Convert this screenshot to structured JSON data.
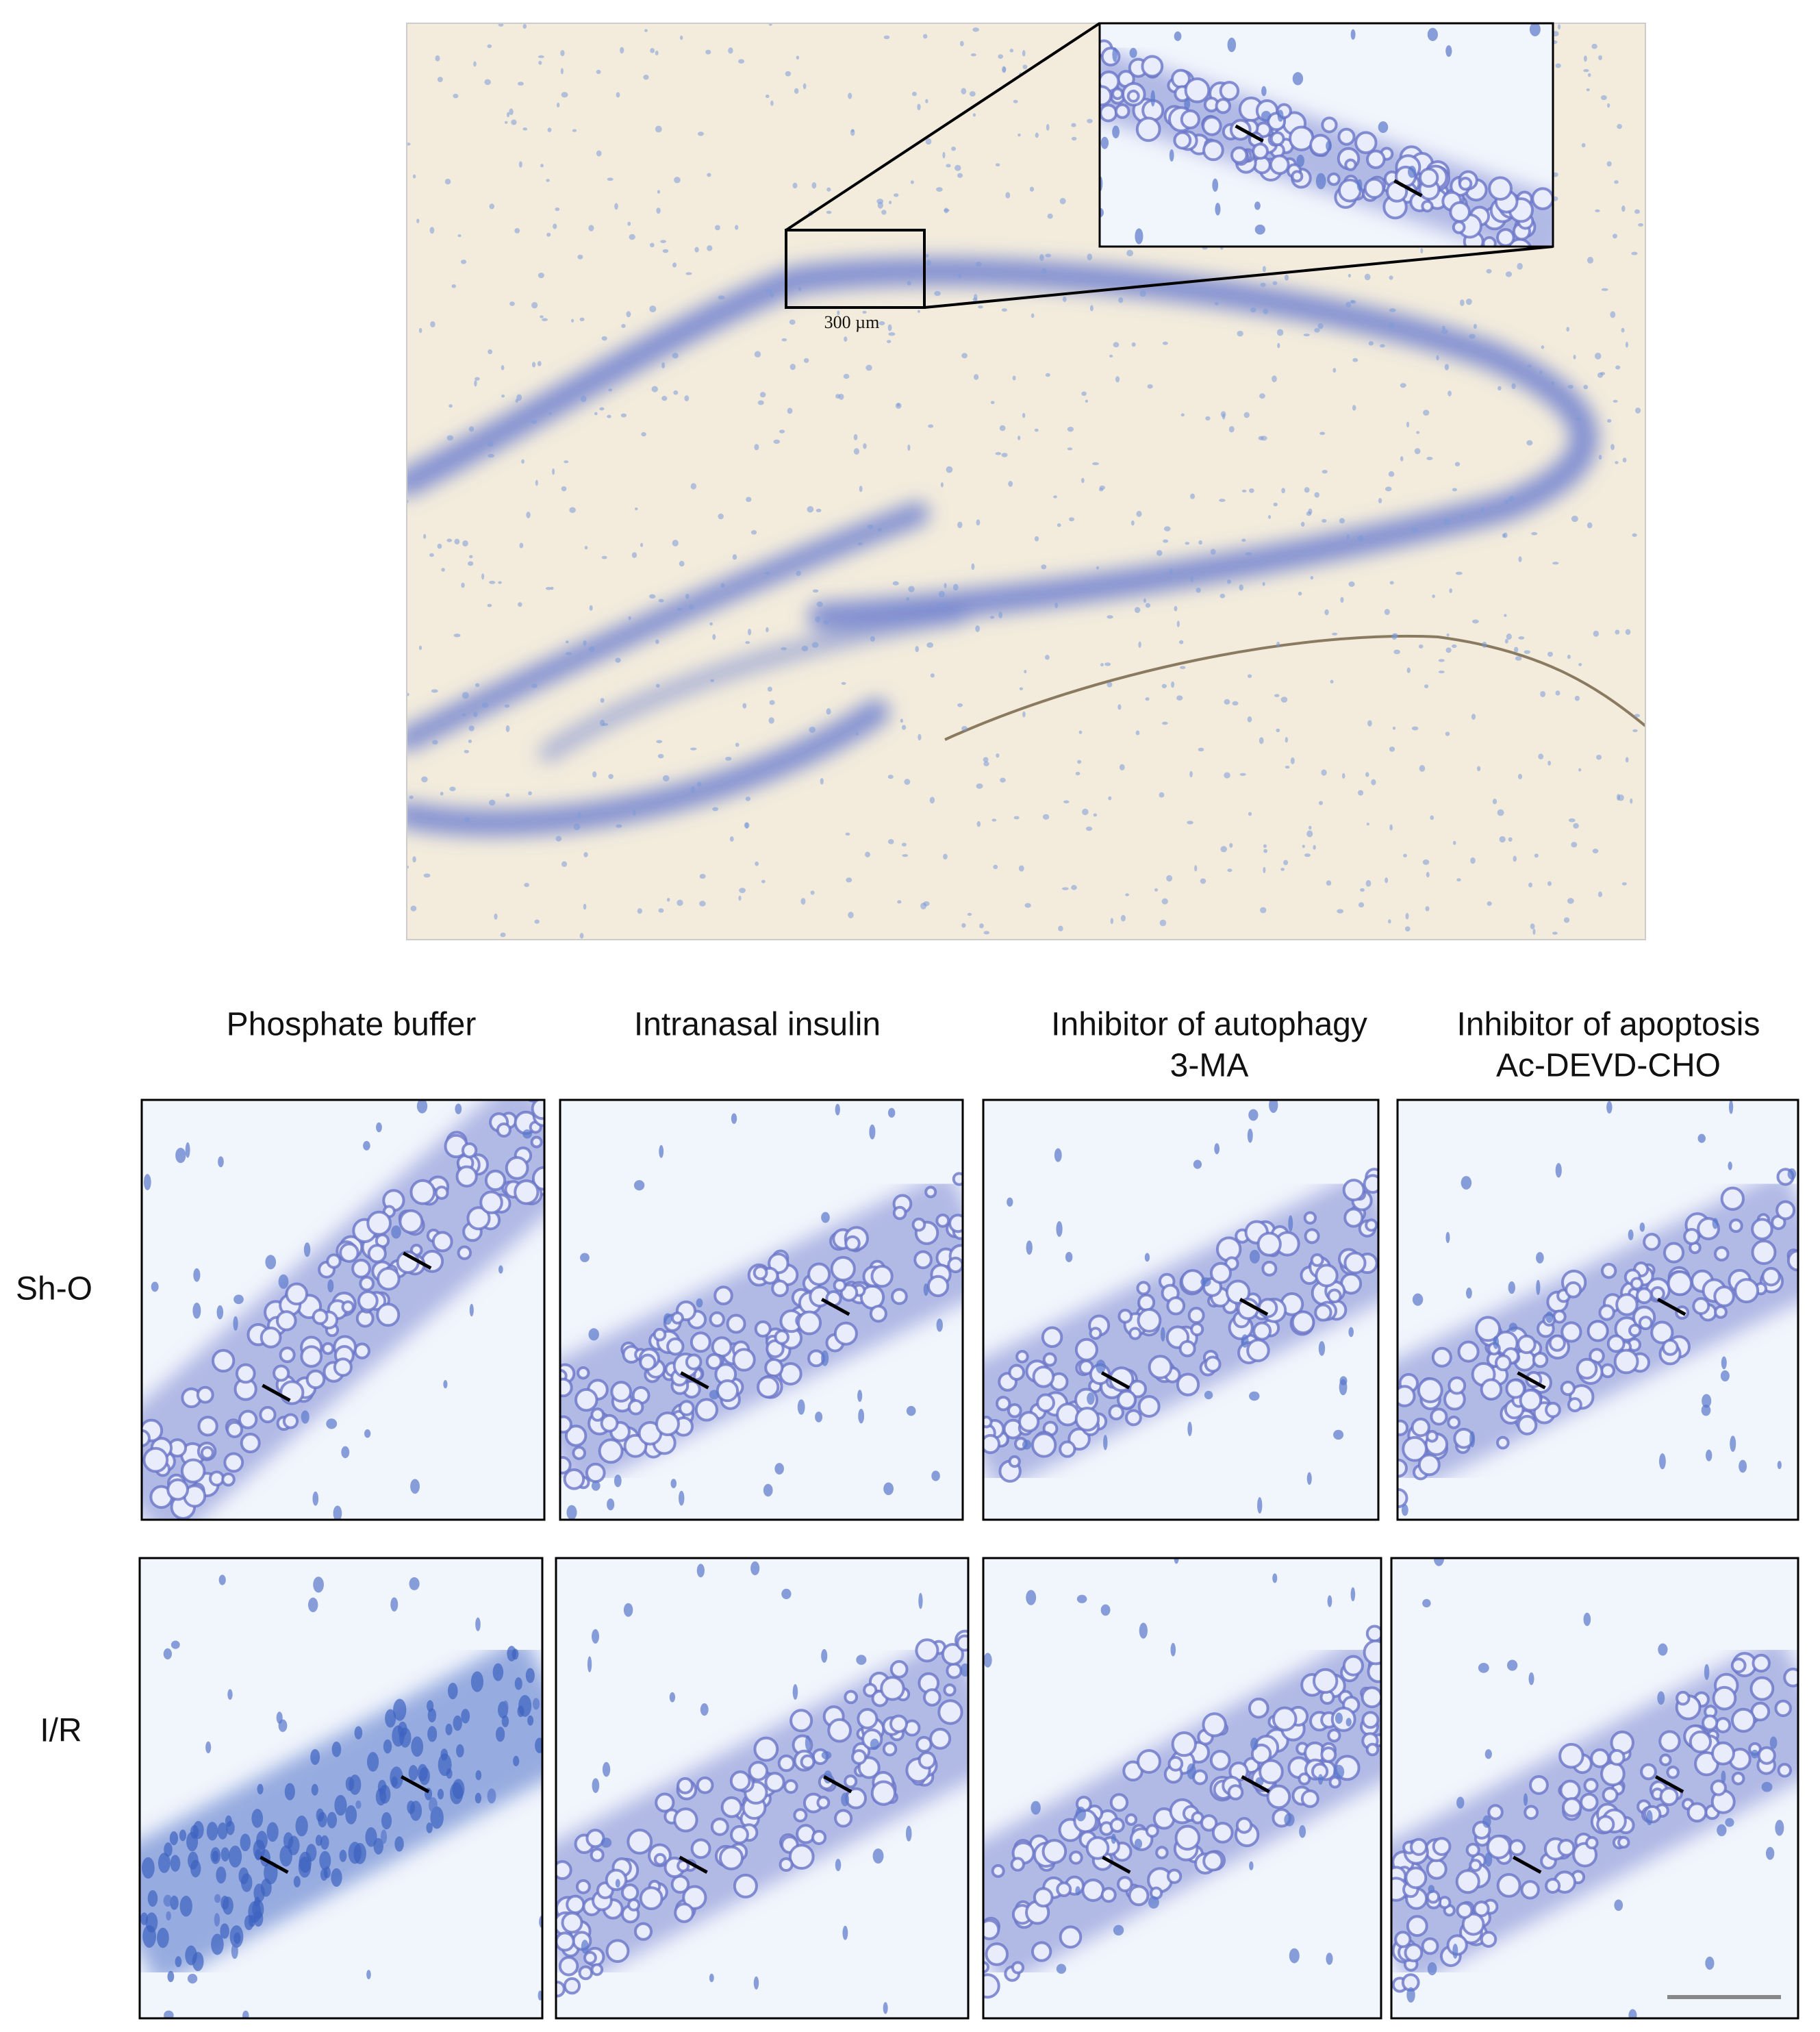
{
  "figure": {
    "scale_label": "300 µm",
    "columns": [
      [
        "Phosphate buffer"
      ],
      [
        "Intranasal insulin"
      ],
      [
        "Inhibitor of autophagy",
        "3-MA"
      ],
      [
        "Inhibitor of apoptosis",
        "Ac-DEVD-CHO"
      ]
    ],
    "rows": [
      "Sh-O",
      "I/R"
    ]
  }
}
